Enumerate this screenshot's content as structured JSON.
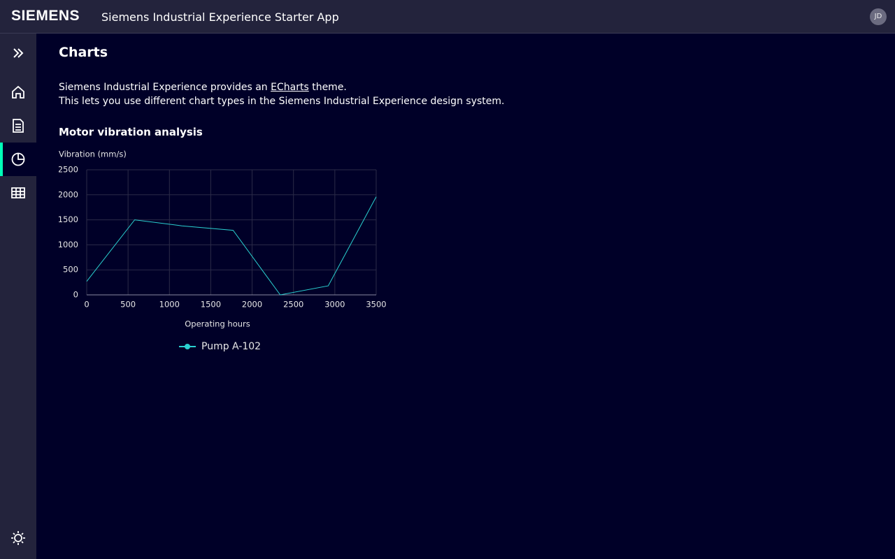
{
  "header": {
    "logo": "SIEMENS",
    "app_title": "Siemens Industrial Experience Starter App",
    "avatar": "JD"
  },
  "page": {
    "title": "Charts",
    "intro": {
      "before": "Siemens Industrial Experience provides an",
      "link": "ECharts",
      "after": "theme."
    },
    "line2": "This lets you use different chart types in the Siemens Industrial Experience design system.",
    "section_title": "Motor vibration analysis"
  },
  "chart_data": {
    "type": "line",
    "y_label": "Vibration (mm/s)",
    "x_label": "Operating hours",
    "x": [
      0,
      580,
      1150,
      1770,
      2340,
      2920,
      3500
    ],
    "series": [
      {
        "name": "Pump A-102",
        "color": "#2ad1d1",
        "values": [
          270,
          1500,
          1380,
          1290,
          0,
          180,
          1960
        ]
      }
    ],
    "xlim": [
      0,
      3500
    ],
    "xticks": [
      0,
      500,
      1000,
      1500,
      2000,
      2500,
      3000,
      3500
    ],
    "ylim": [
      0,
      2500
    ],
    "yticks": [
      0,
      500,
      1000,
      1500,
      2000,
      2500
    ],
    "grid": true
  }
}
